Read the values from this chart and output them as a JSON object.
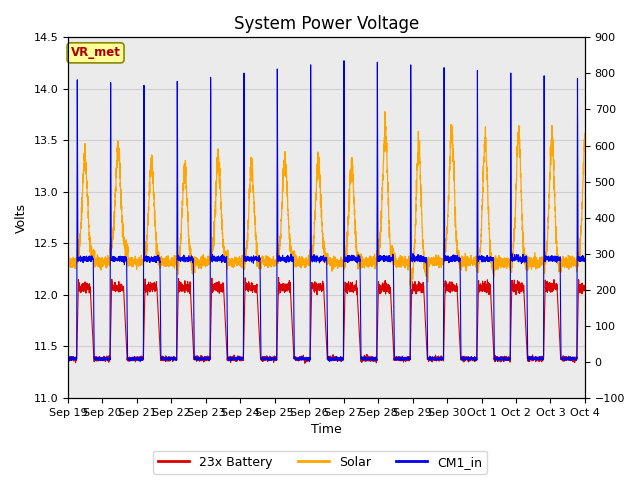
{
  "title": "System Power Voltage",
  "xlabel": "Time",
  "ylabel_left": "Volts",
  "ylim_left": [
    11.0,
    14.5
  ],
  "ylim_right": [
    -100,
    900
  ],
  "yticks_left": [
    11.0,
    11.5,
    12.0,
    12.5,
    13.0,
    13.5,
    14.0,
    14.5
  ],
  "yticks_right": [
    -100,
    0,
    100,
    200,
    300,
    400,
    500,
    600,
    700,
    800,
    900
  ],
  "xtick_labels": [
    "Sep 19",
    "Sep 20",
    "Sep 21",
    "Sep 22",
    "Sep 23",
    "Sep 24",
    "Sep 25",
    "Sep 26",
    "Sep 27",
    "Sep 28",
    "Sep 29",
    "Sep 30",
    "Oct 1",
    "Oct 2",
    "Oct 3",
    "Oct 4"
  ],
  "battery_color": "#dd0000",
  "solar_color": "#ffa500",
  "cm1_color": "#0000ee",
  "legend_labels": [
    "23x Battery",
    "Solar",
    "CM1_in"
  ],
  "annotation_text": "VR_met",
  "annotation_color": "#aa0000",
  "annotation_bg": "#ffff99",
  "annotation_border": "#888800",
  "grid_color": "#d0d0d0",
  "plot_bg": "#ebebeb",
  "title_fontsize": 12,
  "axis_fontsize": 9,
  "tick_fontsize": 8
}
